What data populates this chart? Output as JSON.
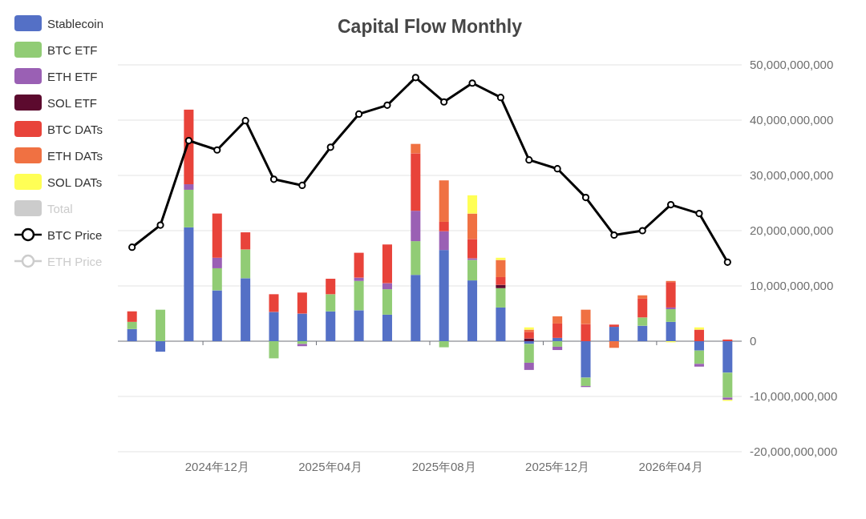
{
  "chart_data": {
    "type": "bar",
    "title": "Capital Flow Monthly",
    "categories": [
      null,
      null,
      null,
      "2024年12月",
      null,
      null,
      null,
      "2025年04月",
      null,
      null,
      null,
      "2025年08月",
      null,
      null,
      null,
      "2025年12月",
      null,
      null,
      null,
      "2026年04月",
      null,
      null
    ],
    "ylim": [
      -20000000000,
      50000000000
    ],
    "yticks": [
      {
        "value": -20000000000,
        "label": "-20,000,000,000"
      },
      {
        "value": -10000000000,
        "label": "-10,000,000,000"
      },
      {
        "value": 0,
        "label": "0"
      },
      {
        "value": 10000000000,
        "label": "10,000,000,000"
      },
      {
        "value": 20000000000,
        "label": "20,000,000,000"
      },
      {
        "value": 30000000000,
        "label": "30,000,000,000"
      },
      {
        "value": 40000000000,
        "label": "40,000,000,000"
      },
      {
        "value": 50000000000,
        "label": "50,000,000,000"
      }
    ],
    "stacked": true,
    "grid": "y",
    "legend": "top left",
    "series": [
      {
        "name": "Stablecoin",
        "color": "#5470c6",
        "values": [
          2200000000.0,
          -1900000000.0,
          20600000000.0,
          9200000000.0,
          11400000000.0,
          5300000000.0,
          5000000000.0,
          5400000000.0,
          5600000000.0,
          4800000000.0,
          12000000000.0,
          16500000000.0,
          11000000000.0,
          6100000000.0,
          -500000000.0,
          600000000.0,
          -6600000000.0,
          2600000000.0,
          2800000000.0,
          3500000000.0,
          -1700000000.0,
          -5700000000.0
        ]
      },
      {
        "name": "BTC ETF",
        "color": "#91cc75",
        "values": [
          1300000000.0,
          5700000000.0,
          6800000000.0,
          4000000000.0,
          5200000000.0,
          -3100000000.0,
          -500000000.0,
          3100000000.0,
          5300000000.0,
          4600000000.0,
          6100000000.0,
          -1100000000.0,
          3700000000.0,
          3500000000.0,
          -3400000000.0,
          -1000000000.0,
          -1500000000.0,
          0,
          1500000000.0,
          2300000000.0,
          -2400000000.0,
          -4500000000.0
        ]
      },
      {
        "name": "ETH ETF",
        "color": "#9a60b4",
        "values": [
          0,
          0,
          1000000000.0,
          1900000000.0,
          0,
          0,
          -400000000.0,
          0,
          600000000.0,
          1100000000.0,
          5500000000.0,
          3400000000.0,
          300000000.0,
          0,
          -1300000000.0,
          -600000000.0,
          -200000000.0,
          0,
          0,
          300000000.0,
          -500000000.0,
          -400000000.0
        ]
      },
      {
        "name": "SOL ETF",
        "color": "#5c0a2e",
        "values": [
          0,
          0,
          0,
          0,
          0,
          0,
          0,
          0,
          0,
          0,
          0,
          0,
          0,
          600000000.0,
          500000000.0,
          0,
          0,
          0,
          0,
          0,
          0,
          0
        ]
      },
      {
        "name": "BTC DATs",
        "color": "#e8433a",
        "values": [
          1900000000.0,
          0,
          13500000000.0,
          8000000000.0,
          3100000000.0,
          3200000000.0,
          3800000000.0,
          2800000000.0,
          4500000000.0,
          7000000000.0,
          10400000000.0,
          1700000000.0,
          3500000000.0,
          1400000000.0,
          1200000000.0,
          2600000000.0,
          3100000000.0,
          400000000.0,
          3400000000.0,
          4600000000.0,
          2100000000.0,
          300000000.0
        ]
      },
      {
        "name": "ETH DATs",
        "color": "#f07142",
        "values": [
          0,
          0,
          0,
          0,
          0,
          0,
          0,
          0,
          0,
          0,
          1700000000.0,
          7500000000.0,
          4600000000.0,
          3100000000.0,
          400000000.0,
          1300000000.0,
          2600000000.0,
          -1200000000.0,
          600000000.0,
          200000000.0,
          0,
          0
        ]
      },
      {
        "name": "SOL DATs",
        "color": "#ffff55",
        "values": [
          0,
          0,
          0,
          0,
          0,
          0,
          0,
          0,
          0,
          0,
          0,
          0,
          3300000000.0,
          400000000.0,
          400000000.0,
          0,
          0,
          0,
          0,
          -200000000.0,
          400000000.0,
          -200000000.0
        ]
      },
      {
        "name": "Total",
        "color": "#cccccc",
        "values": [
          null,
          null,
          null,
          null,
          null,
          null,
          null,
          null,
          null,
          null,
          null,
          null,
          null,
          null,
          null,
          null,
          null,
          null,
          null,
          null,
          null,
          null
        ]
      },
      {
        "name": "BTC Price",
        "type": "line",
        "marker": "circle",
        "color": "#000000",
        "values": [
          17000000000.0,
          21000000000.0,
          36300000000.0,
          34600000000.0,
          39900000000.0,
          29300000000.0,
          28200000000.0,
          35100000000.0,
          41100000000.0,
          42700000000.0,
          47700000000.0,
          43300000000.0,
          46700000000.0,
          44100000000.0,
          32800000000.0,
          31200000000.0,
          26000000000.0,
          19200000000.0,
          20000000000.0,
          24700000000.0,
          23100000000.0,
          14300000000.0
        ]
      },
      {
        "name": "ETH Price",
        "type": "line",
        "marker": "circle",
        "color": "#cccccc",
        "values": [
          null,
          null,
          null,
          null,
          null,
          null,
          null,
          null,
          null,
          null,
          null,
          null,
          null,
          null,
          null,
          null,
          null,
          null,
          null,
          null,
          null,
          null
        ]
      }
    ]
  }
}
